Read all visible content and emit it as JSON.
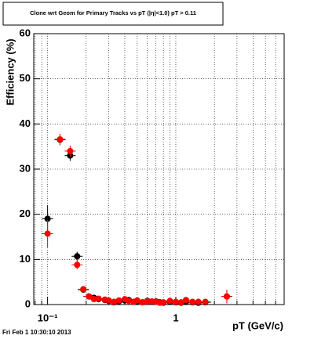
{
  "chart_data": {
    "type": "scatter",
    "title": "Clone wrt Geom for Primary Tracks vs pT (|η|<1.0) pT > 0.11",
    "xlabel": "pT (GeV/c)",
    "ylabel": "Efficiency (%)",
    "footer": "Fri Feb  1 10:30:10 2013",
    "log_x": true,
    "grid": true,
    "xlim": [
      0.078,
      7.0
    ],
    "ylim": [
      0,
      60
    ],
    "xticks": [
      {
        "value": 0.1,
        "label": "10⁻¹"
      },
      1
    ],
    "x_minor_ticks": [
      0.08,
      0.09,
      0.2,
      0.3,
      0.4,
      0.5,
      0.6,
      0.7,
      0.8,
      0.9,
      2,
      3,
      4,
      5,
      6,
      7
    ],
    "yticks": [
      0,
      10,
      20,
      30,
      40,
      50,
      60
    ],
    "x": [
      0.1,
      0.125,
      0.15,
      0.17,
      0.19,
      0.21,
      0.23,
      0.25,
      0.28,
      0.3,
      0.33,
      0.36,
      0.4,
      0.43,
      0.47,
      0.5,
      0.55,
      0.6,
      0.65,
      0.7,
      0.75,
      0.8,
      0.9,
      1.0,
      1.1,
      1.2,
      1.35,
      1.5,
      1.7,
      2.5
    ],
    "series": [
      {
        "color": "#000000",
        "values": [
          19,
          36.5,
          33,
          10.7,
          3.3,
          1.8,
          1.5,
          1.2,
          1,
          0.8,
          0.5,
          0.7,
          0.9,
          1,
          0.6,
          0.7,
          0.5,
          0.8,
          0.6,
          0.7,
          0.5,
          0.4,
          0.6,
          0.5,
          0.4,
          0.6,
          0.5,
          0.4,
          0.5,
          1.8
        ],
        "errors": [
          3,
          1.2,
          1.2,
          1,
          0.6,
          0.5,
          0.5,
          0.4,
          0.4,
          0.4,
          0.3,
          0.3,
          0.3,
          0.3,
          0.3,
          0.3,
          0.3,
          0.3,
          0.3,
          0.3,
          0.3,
          0.3,
          0.3,
          0.3,
          0.3,
          0.3,
          0.3,
          0.3,
          0.3,
          1.5
        ]
      },
      {
        "color": "#ff0000",
        "values": [
          15.7,
          36.6,
          34,
          8.8,
          3.4,
          1.8,
          1.2,
          1.3,
          1.1,
          0.9,
          0.6,
          0.9,
          1.2,
          0.8,
          0.6,
          0.9,
          0.5,
          0.7,
          0.7,
          0.6,
          0.4,
          0.5,
          0.8,
          0.6,
          0.5,
          1,
          0.6,
          0.6,
          0.6,
          1.8
        ],
        "errors": [
          3,
          1.2,
          1.2,
          1,
          0.6,
          0.5,
          0.5,
          0.4,
          0.4,
          0.4,
          0.3,
          0.3,
          0.3,
          0.3,
          0.3,
          0.3,
          0.3,
          0.3,
          0.3,
          0.3,
          0.3,
          0.3,
          0.3,
          0.3,
          0.3,
          0.3,
          0.3,
          0.3,
          0.3,
          1.5
        ]
      }
    ]
  }
}
